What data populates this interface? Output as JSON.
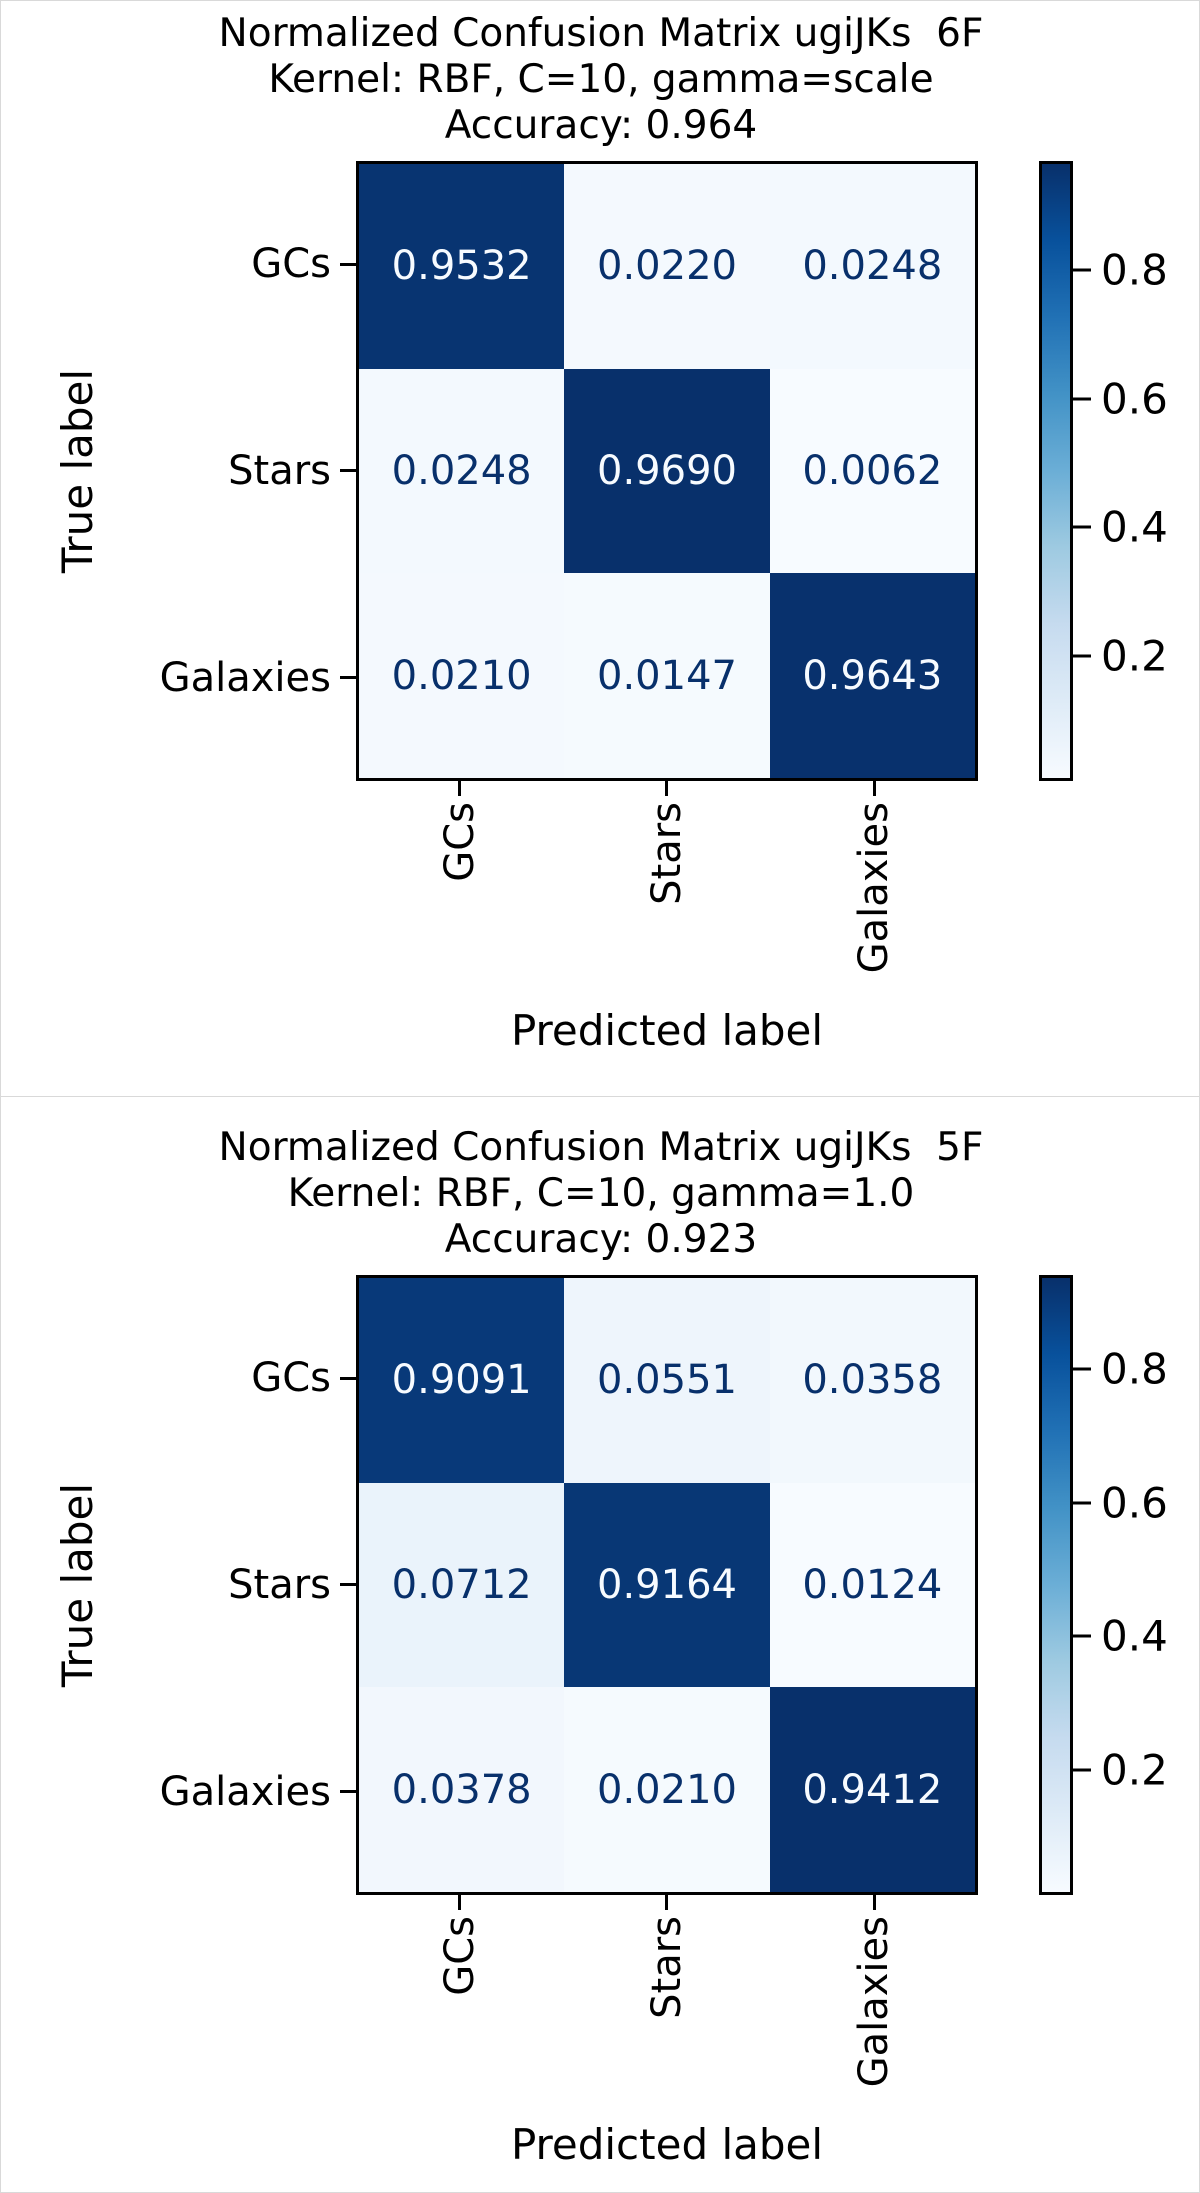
{
  "colors": {
    "cmap_dark": "#08306b",
    "cmap_light": "#f7fbff",
    "frame_gray": "#d9d9d9",
    "text": "#000000"
  },
  "figures": [
    {
      "title_lines": [
        "Normalized Confusion Matrix ugiJKs  6F",
        "Kernel: RBF, C=10, gamma=scale",
        "Accuracy: 0.964"
      ],
      "ylabel": "True label",
      "xlabel": "Predicted label",
      "row_labels": [
        "GCs",
        "Stars",
        "Galaxies"
      ],
      "col_labels": [
        "GCs",
        "Stars",
        "Galaxies"
      ],
      "cells": [
        [
          "0.9532",
          "0.0220",
          "0.0248"
        ],
        [
          "0.0248",
          "0.9690",
          "0.0062"
        ],
        [
          "0.0210",
          "0.0147",
          "0.9643"
        ]
      ],
      "colorbar_tick_labels": [
        "0.8",
        "0.6",
        "0.4",
        "0.2"
      ]
    },
    {
      "title_lines": [
        "Normalized Confusion Matrix ugiJKs  5F",
        "Kernel: RBF, C=10, gamma=1.0",
        "Accuracy: 0.923"
      ],
      "ylabel": "True label",
      "xlabel": "Predicted label",
      "row_labels": [
        "GCs",
        "Stars",
        "Galaxies"
      ],
      "col_labels": [
        "GCs",
        "Stars",
        "Galaxies"
      ],
      "cells": [
        [
          "0.9091",
          "0.0551",
          "0.0358"
        ],
        [
          "0.0712",
          "0.9164",
          "0.0124"
        ],
        [
          "0.0378",
          "0.0210",
          "0.9412"
        ]
      ],
      "colorbar_tick_labels": [
        "0.8",
        "0.6",
        "0.4",
        "0.2"
      ]
    }
  ],
  "chart_data": [
    {
      "type": "heatmap",
      "title": "Normalized Confusion Matrix ugiJKs  6F",
      "subtitle": "Kernel: RBF, C=10, gamma=scale",
      "accuracy": 0.964,
      "xlabel": "Predicted label",
      "ylabel": "True label",
      "x_categories": [
        "GCs",
        "Stars",
        "Galaxies"
      ],
      "y_categories": [
        "GCs",
        "Stars",
        "Galaxies"
      ],
      "values": [
        [
          0.9532,
          0.022,
          0.0248
        ],
        [
          0.0248,
          0.969,
          0.0062
        ],
        [
          0.021,
          0.0147,
          0.9643
        ]
      ],
      "colormap": "Blues",
      "color_range": [
        0.0062,
        0.969
      ],
      "colorbar_ticks": [
        0.2,
        0.4,
        0.6,
        0.8
      ],
      "colorbar_position": "right",
      "grid": false
    },
    {
      "type": "heatmap",
      "title": "Normalized Confusion Matrix ugiJKs  5F",
      "subtitle": "Kernel: RBF, C=10, gamma=1.0",
      "accuracy": 0.923,
      "xlabel": "Predicted label",
      "ylabel": "True label",
      "x_categories": [
        "GCs",
        "Stars",
        "Galaxies"
      ],
      "y_categories": [
        "GCs",
        "Stars",
        "Galaxies"
      ],
      "values": [
        [
          0.9091,
          0.0551,
          0.0358
        ],
        [
          0.0712,
          0.9164,
          0.0124
        ],
        [
          0.0378,
          0.021,
          0.9412
        ]
      ],
      "colormap": "Blues",
      "color_range": [
        0.0124,
        0.9412
      ],
      "colorbar_ticks": [
        0.2,
        0.4,
        0.6,
        0.8
      ],
      "colorbar_position": "right",
      "grid": false
    }
  ]
}
